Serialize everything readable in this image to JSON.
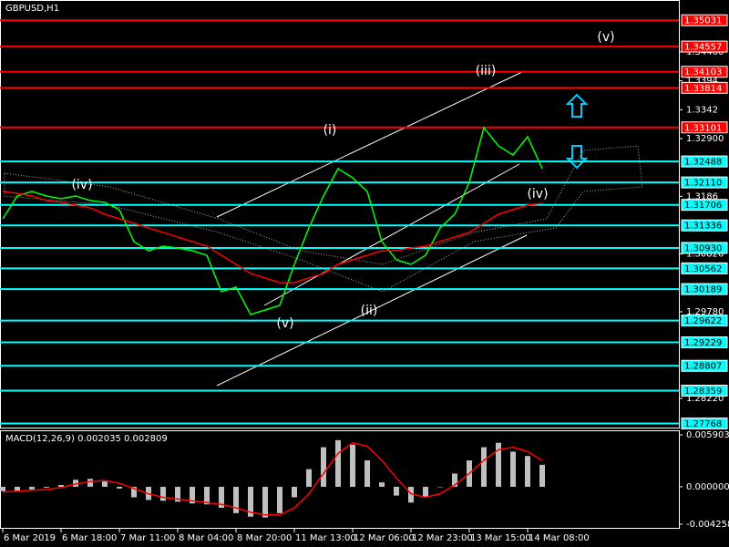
{
  "chart_data": [
    {
      "type": "line",
      "title": "GBPUSD,H1",
      "categories": [
        "6 Mar 2019",
        null,
        null,
        null,
        "6 Mar 18:00",
        null,
        null,
        null,
        "7 Mar 11:00",
        null,
        null,
        null,
        "8 Mar 04:00",
        null,
        null,
        null,
        "8 Mar 20:00",
        null,
        null,
        null,
        "11 Mar 13:00",
        null,
        null,
        null,
        "12 Mar 06:00",
        null,
        null,
        null,
        "12 Mar 23:00",
        null,
        null,
        null,
        "13 Mar 15:00",
        null,
        null,
        null,
        "14 Mar 08:00",
        null
      ],
      "series": [
        {
          "color": "#00ff00",
          "values": [
            1.31455,
            1.31866,
            1.31948,
            1.31866,
            1.31816,
            1.31866,
            1.31783,
            1.31751,
            1.31619,
            1.31045,
            1.3088,
            1.30962,
            1.3093,
            1.3088,
            1.30798,
            1.30141,
            1.30224,
            1.29731,
            1.29813,
            1.29895,
            1.30634,
            1.31291,
            1.31866,
            1.32358,
            1.32194,
            1.31948,
            1.31045,
            1.30716,
            1.30634,
            1.30798,
            1.31291,
            1.31537,
            1.32112,
            1.33097,
            1.32769,
            1.32604,
            1.32933,
            1.32358
          ]
        },
        {
          "color": "#ff0000",
          "values": [
            1.31948,
            1.31915,
            1.31866,
            1.31783,
            1.31751,
            1.31701,
            1.31652,
            1.31537,
            1.31455,
            1.31373,
            1.31291,
            1.31209,
            1.31127,
            1.31045,
            1.30962,
            1.30798,
            1.30634,
            1.3047,
            1.30388,
            1.30306,
            1.30306,
            1.30388,
            1.3047,
            1.30634,
            1.30716,
            1.30798,
            1.3088,
            1.3088,
            1.3093,
            1.30962,
            1.31045,
            1.31127,
            1.31209,
            1.31373,
            1.31537,
            1.31619,
            1.31701,
            1.31734
          ]
        }
      ],
      "ylim": [
        1.27678,
        1.35363
      ],
      "yticks": [
        {
          "value": 1.3446,
          "label": "1.34460"
        },
        1.3394,
        1.3342,
        {
          "value": 1.329,
          "label": "1.32900"
        },
        1.3186,
        {
          "value": 1.3082,
          "label": "1.30820"
        },
        {
          "value": 1.2978,
          "label": "1.29780"
        },
        {
          "value": 1.2822,
          "label": "1.28220"
        }
      ],
      "levels": [
        {
          "color": "#ff0000",
          "values": [
            1.35031,
            1.34557,
            1.34103,
            1.33814,
            1.33101
          ]
        },
        {
          "color": "#00ffff",
          "values": [
            1.32488,
            {
              "value": 1.3211,
              "label": "1.32110"
            },
            1.31706,
            1.31336,
            {
              "value": 1.3093,
              "label": "1.30930"
            },
            1.30562,
            1.30189,
            1.29622,
            1.29229,
            1.28807,
            1.28359,
            1.27768
          ]
        }
      ],
      "annotations": [
        "(iv)",
        "(v)",
        "(i)",
        "(ii)",
        "(iii)",
        "(iv)",
        "(v)"
      ]
    },
    {
      "type": "bar",
      "title": "MACD(12,26,9) 0.002035 0.002809",
      "series": [
        {
          "color": "#c0c0c0",
          "values": [
            -0.0005,
            -0.0005,
            -0.0003,
            -0.0001,
            0.0002,
            0.0008,
            0.0009,
            0.0006,
            -0.0002,
            -0.0012,
            -0.0015,
            -0.0016,
            -0.0017,
            -0.0019,
            -0.002,
            -0.0024,
            -0.003,
            -0.0034,
            -0.0035,
            -0.003,
            -0.0012,
            0.002,
            0.0045,
            0.0053,
            0.0048,
            0.003,
            0.0005,
            -0.001,
            -0.0018,
            -0.0012,
            0,
            0.0015,
            0.003,
            0.0045,
            0.005,
            0.004,
            0.0035,
            0.0025
          ]
        },
        {
          "type": "line",
          "color": "#ff0000",
          "values": [
            -0.0006,
            -0.0005,
            -0.0004,
            -0.0003,
            -0.0001,
            0.0003,
            0.0006,
            0.0007,
            0.0004,
            -0.0002,
            -0.0008,
            -0.0012,
            -0.0014,
            -0.0016,
            -0.0018,
            -0.002,
            -0.0024,
            -0.0029,
            -0.0032,
            -0.0032,
            -0.0024,
            -0.0008,
            0.0015,
            0.0038,
            0.005,
            0.0046,
            0.003,
            0.001,
            -0.0008,
            -0.0012,
            -0.0008,
            0.0002,
            0.0015,
            0.003,
            0.0042,
            0.0045,
            0.004,
            0.003
          ]
        }
      ],
      "ylim": [
        -0.004776,
        0.006421
      ],
      "yticks": [
        0.005903,
        {
          "value": 0,
          "label": "0.000000"
        },
        -0.004258
      ]
    }
  ]
}
